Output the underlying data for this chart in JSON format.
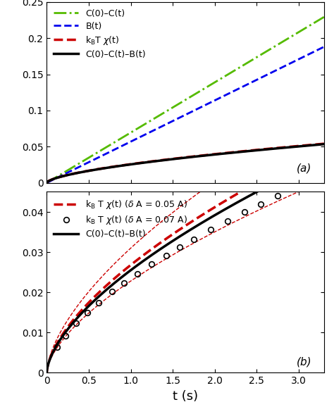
{
  "t_max": 3.3,
  "xlim": [
    0,
    3.3
  ],
  "xticks": [
    0,
    0.5,
    1.0,
    1.5,
    2.0,
    2.5,
    3.0
  ],
  "panel_a": {
    "ylim": [
      0,
      0.25
    ],
    "yticks": [
      0,
      0.05,
      0.1,
      0.15,
      0.2,
      0.25
    ],
    "C0Ct_color": "#55bb00",
    "Bt_color": "#0000ee",
    "kBTchi_color": "#cc0000",
    "diff_color": "#000000",
    "label_C0Ct": "C(0)–C(t)",
    "label_Bt": "B(t)",
    "label_kBTchi": "k$_{\\rm B}$T $\\chi$(t)",
    "label_diff": "C(0)–C(t)–B(t)",
    "C0Ct_a": 0.0695,
    "C0Ct_pow": 1.0,
    "Bt_a": 0.057,
    "Bt_pow": 1.0,
    "diff_a_coef": 0.0255,
    "diff_a_pow": 0.62,
    "kBTchi_a_coef": 0.0258,
    "kBTchi_a_pow": 0.62
  },
  "panel_b": {
    "ylim": [
      0,
      0.045
    ],
    "yticks": [
      0,
      0.01,
      0.02,
      0.03,
      0.04
    ],
    "kBTchi_05_color": "#cc0000",
    "diff_color": "#000000",
    "label_kBTchi_05": "k$_{\\rm B}$ T $\\chi$(t) ($\\delta$ A = 0.05 A)",
    "label_kBTchi_07": "k$_{\\rm B}$ T $\\chi$(t) ($\\delta$ A = 0.07 A)",
    "label_diff": "C(0)–C(t)–B(t)",
    "diff_b_coef": 0.0255,
    "diff_b_pow": 0.62,
    "kBTchi_05_coef": 0.0268,
    "kBTchi_05_pow": 0.62,
    "kBTchi_05_upper_coef": 0.031,
    "kBTchi_05_upper_pow": 0.62,
    "kBTchi_05_lower_coef": 0.0228,
    "kBTchi_05_lower_pow": 0.62,
    "t_pts": [
      0.12,
      0.22,
      0.35,
      0.48,
      0.62,
      0.78,
      0.92,
      1.08,
      1.25,
      1.42,
      1.58,
      1.75,
      1.95,
      2.15,
      2.35,
      2.55,
      2.75,
      2.95,
      3.15
    ],
    "kBTchi_07_coef": 0.0235,
    "kBTchi_07_pow": 0.62
  },
  "xlabel": "t (s)",
  "background_color": "#ffffff",
  "label_fontsize": 10,
  "tick_fontsize": 10,
  "xlabel_fontsize": 13,
  "panel_label_fontsize": 11,
  "legend_fontsize": 9
}
